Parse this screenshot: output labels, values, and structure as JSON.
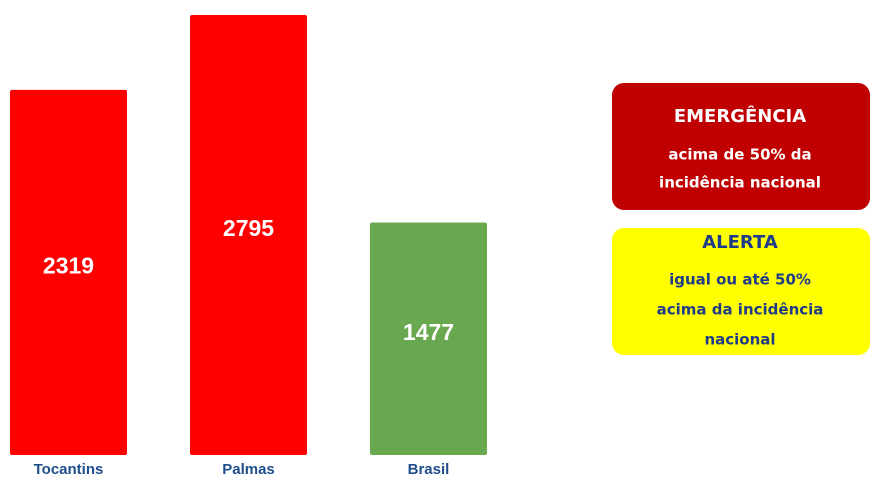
{
  "chart_data": {
    "type": "bar",
    "categories": [
      "Tocantins",
      "Palmas",
      "Brasil"
    ],
    "values": [
      2319,
      2795,
      1477
    ],
    "colors": [
      "#ff0000",
      "#ff0000",
      "#6aa84f"
    ],
    "annotations": [
      {
        "title": "EMERGÊNCIA",
        "lines": [
          "acima de 50% da",
          "incidência nacional"
        ],
        "color": "#c00000",
        "text_color": "#ffffff"
      },
      {
        "title": "ALERTA",
        "lines": [
          "igual ou até  50%",
          "acima da incidência",
          "nacional"
        ],
        "color": "#ffff00",
        "text_color": "#1f3c88"
      }
    ]
  }
}
